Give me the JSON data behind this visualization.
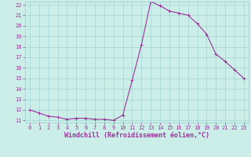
{
  "x_values": [
    0,
    1,
    2,
    3,
    4,
    5,
    6,
    7,
    8,
    9,
    10,
    11,
    12,
    13,
    14,
    15,
    16,
    17,
    18,
    19,
    20,
    21,
    22,
    23
  ],
  "y_values": [
    12.0,
    11.7,
    11.4,
    11.3,
    11.1,
    11.2,
    11.2,
    11.1,
    11.1,
    11.0,
    11.5,
    14.8,
    18.2,
    22.3,
    21.9,
    21.4,
    21.2,
    21.0,
    20.2,
    19.2,
    17.3,
    16.6,
    15.8,
    15.0
  ],
  "line_color": "#993399",
  "marker": "+",
  "marker_size": 3,
  "marker_linewidth": 0.7,
  "linewidth": 0.8,
  "bg_color": "#cceee8",
  "grid_color": "#99cccc",
  "xlabel": "Windchill (Refroidissement éolien,°C)",
  "xlabel_color": "#993399",
  "tick_color": "#993399",
  "ylim_min": 11,
  "ylim_max": 22,
  "xlim_min": -0.5,
  "xlim_max": 23.5,
  "yticks": [
    11,
    12,
    13,
    14,
    15,
    16,
    17,
    18,
    19,
    20,
    21,
    22
  ],
  "xticks": [
    0,
    1,
    2,
    3,
    4,
    5,
    6,
    7,
    8,
    9,
    10,
    11,
    12,
    13,
    14,
    15,
    16,
    17,
    18,
    19,
    20,
    21,
    22,
    23
  ],
  "tick_fontsize": 5,
  "xlabel_fontsize": 6,
  "fig_width": 3.2,
  "fig_height": 2.0,
  "dpi": 100
}
